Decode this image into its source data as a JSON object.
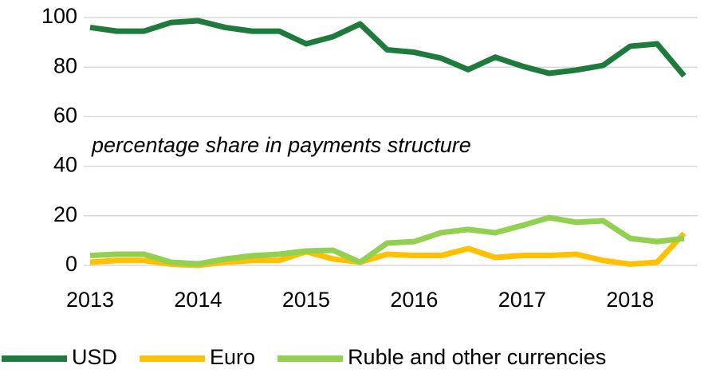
{
  "chart_data": {
    "type": "line",
    "annotation": "percentage share in payments structure",
    "categories": [
      "2013",
      null,
      null,
      null,
      "2014",
      null,
      null,
      null,
      "2015",
      null,
      null,
      null,
      "2016",
      null,
      null,
      null,
      "2017",
      null,
      null,
      null,
      "2018",
      null,
      null
    ],
    "series": [
      {
        "name": "USD",
        "color": "#1e7b3c",
        "values": [
          96,
          94.5,
          94.5,
          98,
          98.7,
          96,
          94.5,
          94.5,
          89.4,
          92.3,
          97.4,
          87,
          86,
          83.6,
          79,
          84,
          80.4,
          77.5,
          78.8,
          80.7,
          88.4,
          89.4,
          76.5
        ]
      },
      {
        "name": "Euro",
        "color": "#ffc000",
        "values": [
          1.3,
          2,
          2,
          0.5,
          0,
          1.3,
          2,
          2,
          5.5,
          2.6,
          1.3,
          4.5,
          4,
          4,
          6.8,
          3.2,
          4,
          4,
          4.5,
          2,
          0.5,
          1.3,
          12.9
        ]
      },
      {
        "name": "Ruble and other currencies",
        "color": "#92d050",
        "values": [
          4,
          4.5,
          4.5,
          1.3,
          0.6,
          2.6,
          3.9,
          4.5,
          5.8,
          6.1,
          1.3,
          9,
          9.6,
          13.2,
          14.5,
          13.2,
          16.1,
          19.3,
          17.4,
          18,
          10.9,
          9.6,
          10.9
        ]
      }
    ],
    "ylim": [
      0,
      100
    ],
    "yticks": [
      0,
      20,
      40,
      60,
      80,
      100
    ],
    "grid": true,
    "legend": "bottom"
  }
}
